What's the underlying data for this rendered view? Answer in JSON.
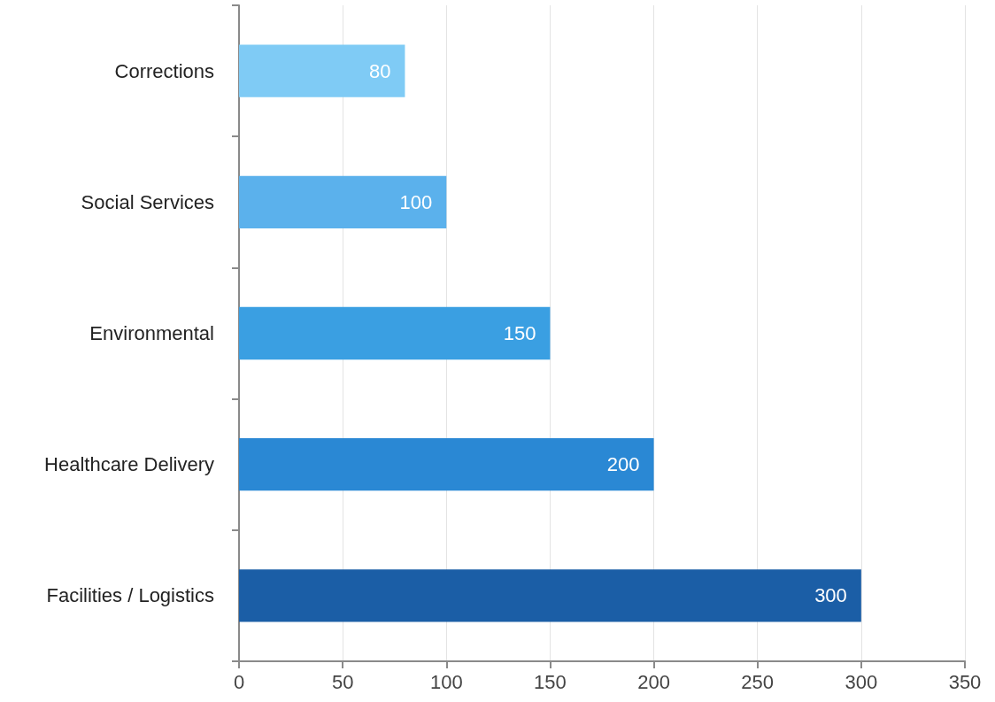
{
  "chart_data": {
    "type": "bar",
    "orientation": "horizontal",
    "categories": [
      "Corrections",
      "Social Services",
      "Environmental",
      "Healthcare Delivery",
      "Facilities / Logistics"
    ],
    "values": [
      80,
      100,
      150,
      200,
      300
    ],
    "colors": [
      "#7fcbf5",
      "#5bb1ec",
      "#3a9fe2",
      "#2a88d4",
      "#1b5ea6"
    ],
    "xlim": [
      0,
      350
    ],
    "xticks": [
      0,
      50,
      100,
      150,
      200,
      250,
      300,
      350
    ],
    "grid": "x",
    "data_labels": true
  }
}
